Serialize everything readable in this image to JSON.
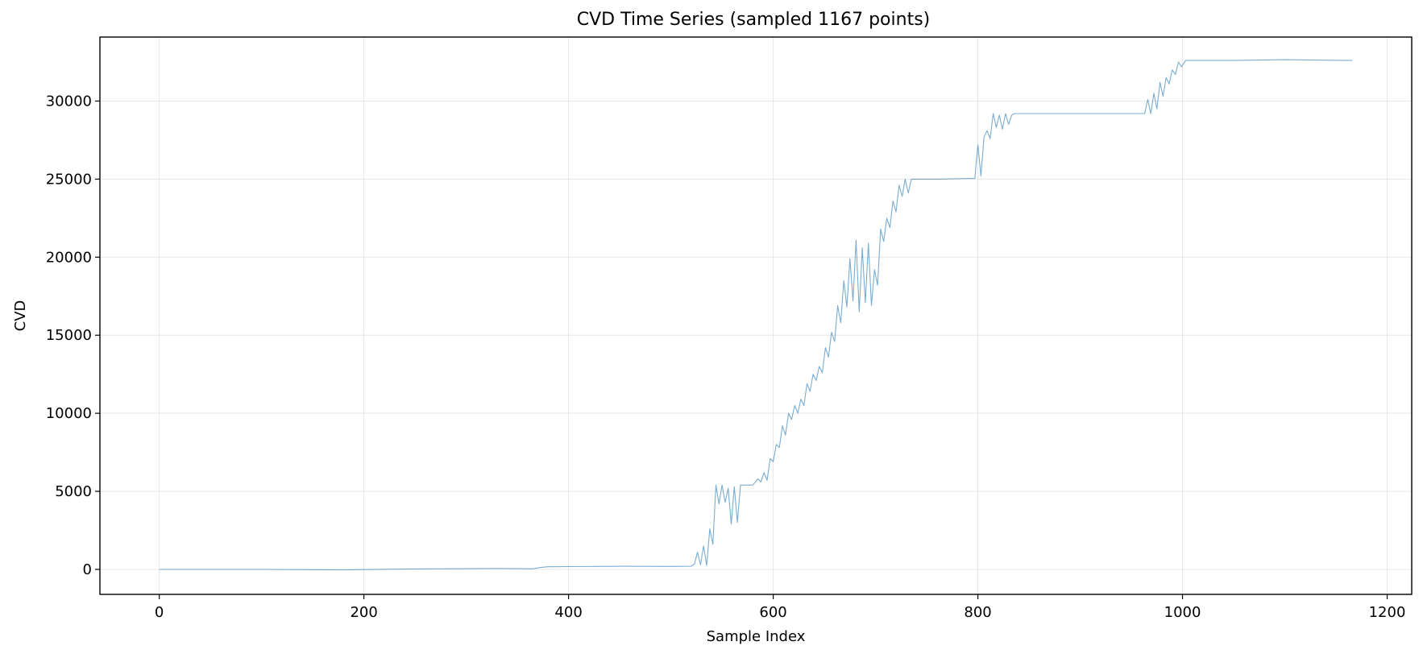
{
  "chart_data": {
    "type": "line",
    "title": "CVD Time Series (sampled 1167 points)",
    "xlabel": "Sample Index",
    "ylabel": "CVD",
    "xlim": [
      -58,
      1224
    ],
    "ylim": [
      -1600,
      34100
    ],
    "xticks": [
      0,
      200,
      400,
      600,
      800,
      1000,
      1200
    ],
    "yticks": [
      0,
      5000,
      10000,
      15000,
      20000,
      25000,
      30000
    ],
    "grid": true,
    "series": [
      {
        "color": "#1f77b4",
        "opacity": 0.6,
        "points": [
          [
            0,
            0
          ],
          [
            100,
            0
          ],
          [
            180,
            -30
          ],
          [
            250,
            30
          ],
          [
            330,
            60
          ],
          [
            365,
            40
          ],
          [
            372,
            120
          ],
          [
            380,
            170
          ],
          [
            400,
            180
          ],
          [
            450,
            200
          ],
          [
            500,
            190
          ],
          [
            520,
            200
          ],
          [
            523,
            350
          ],
          [
            526,
            1100
          ],
          [
            529,
            300
          ],
          [
            532,
            1500
          ],
          [
            535,
            250
          ],
          [
            538,
            2600
          ],
          [
            541,
            1600
          ],
          [
            544,
            5400
          ],
          [
            547,
            4200
          ],
          [
            550,
            5400
          ],
          [
            553,
            4300
          ],
          [
            556,
            5200
          ],
          [
            559,
            2900
          ],
          [
            562,
            5300
          ],
          [
            565,
            3000
          ],
          [
            568,
            5400
          ],
          [
            575,
            5400
          ],
          [
            580,
            5400
          ],
          [
            585,
            5800
          ],
          [
            588,
            5600
          ],
          [
            591,
            6200
          ],
          [
            594,
            5700
          ],
          [
            597,
            7100
          ],
          [
            600,
            6900
          ],
          [
            603,
            8000
          ],
          [
            606,
            7800
          ],
          [
            609,
            9200
          ],
          [
            612,
            8600
          ],
          [
            615,
            10000
          ],
          [
            618,
            9600
          ],
          [
            621,
            10500
          ],
          [
            624,
            10000
          ],
          [
            627,
            10900
          ],
          [
            630,
            10500
          ],
          [
            633,
            11900
          ],
          [
            636,
            11400
          ],
          [
            639,
            12500
          ],
          [
            642,
            12100
          ],
          [
            645,
            13000
          ],
          [
            648,
            12600
          ],
          [
            651,
            14200
          ],
          [
            654,
            13600
          ],
          [
            657,
            15200
          ],
          [
            660,
            14600
          ],
          [
            663,
            16900
          ],
          [
            666,
            15800
          ],
          [
            669,
            18500
          ],
          [
            672,
            16800
          ],
          [
            675,
            19900
          ],
          [
            678,
            17200
          ],
          [
            681,
            21100
          ],
          [
            684,
            16500
          ],
          [
            687,
            20600
          ],
          [
            690,
            17100
          ],
          [
            693,
            20900
          ],
          [
            696,
            16900
          ],
          [
            699,
            19200
          ],
          [
            702,
            18200
          ],
          [
            705,
            21800
          ],
          [
            708,
            21000
          ],
          [
            711,
            22500
          ],
          [
            714,
            21900
          ],
          [
            717,
            23600
          ],
          [
            720,
            22900
          ],
          [
            723,
            24600
          ],
          [
            726,
            23900
          ],
          [
            729,
            25000
          ],
          [
            732,
            24100
          ],
          [
            735,
            25000
          ],
          [
            760,
            25000
          ],
          [
            797,
            25050
          ],
          [
            800,
            27200
          ],
          [
            803,
            25200
          ],
          [
            806,
            27700
          ],
          [
            809,
            28100
          ],
          [
            812,
            27600
          ],
          [
            815,
            29200
          ],
          [
            818,
            28300
          ],
          [
            821,
            29100
          ],
          [
            824,
            28200
          ],
          [
            827,
            29200
          ],
          [
            830,
            28500
          ],
          [
            833,
            29100
          ],
          [
            836,
            29200
          ],
          [
            900,
            29200
          ],
          [
            963,
            29200
          ],
          [
            966,
            30100
          ],
          [
            969,
            29200
          ],
          [
            972,
            30500
          ],
          [
            975,
            29500
          ],
          [
            978,
            31200
          ],
          [
            981,
            30300
          ],
          [
            984,
            31500
          ],
          [
            987,
            31100
          ],
          [
            990,
            32000
          ],
          [
            993,
            31700
          ],
          [
            996,
            32500
          ],
          [
            999,
            32200
          ],
          [
            1003,
            32600
          ],
          [
            1050,
            32600
          ],
          [
            1100,
            32650
          ],
          [
            1166,
            32600
          ]
        ]
      }
    ]
  }
}
